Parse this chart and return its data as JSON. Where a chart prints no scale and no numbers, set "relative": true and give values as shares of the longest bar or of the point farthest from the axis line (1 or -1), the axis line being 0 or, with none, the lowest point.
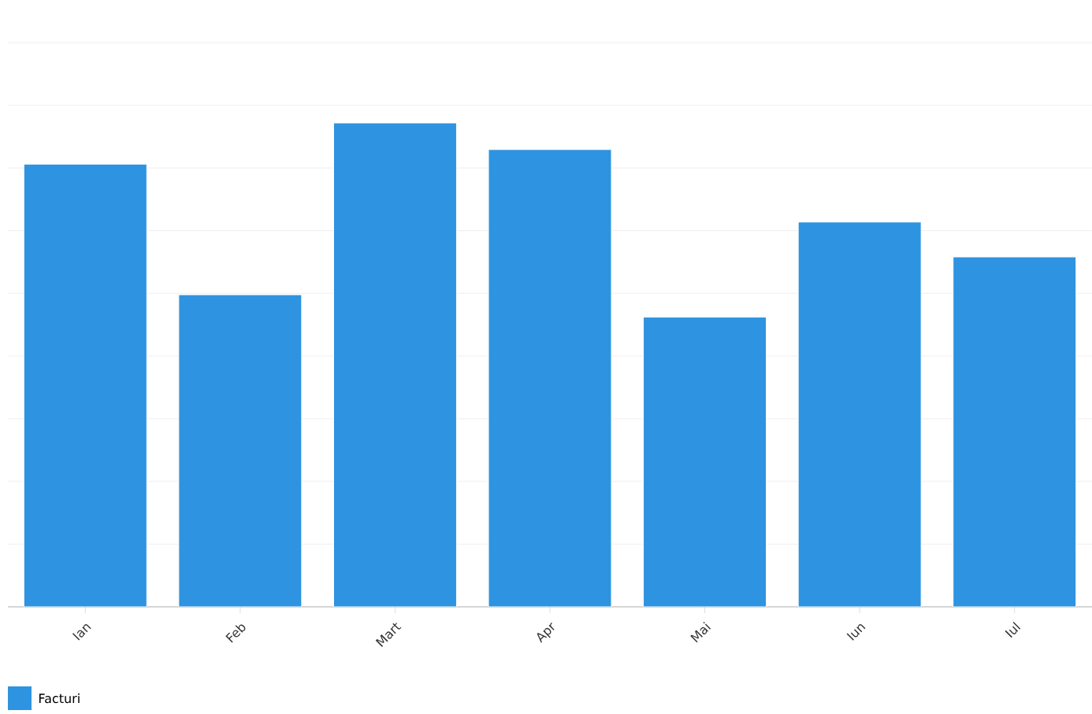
{
  "chart_data": {
    "type": "bar",
    "relative": true,
    "categories": [
      "Ian",
      "Feb",
      "Mart",
      "Apr",
      "Mai",
      "Iun",
      "Iul"
    ],
    "series": [
      {
        "name": "Facturi",
        "color": "#2e93e0",
        "values": [
          0.915,
          0.645,
          1,
          0.945,
          0.599,
          0.795,
          0.723
        ]
      }
    ],
    "grid": "y",
    "legend": "bottom left"
  }
}
